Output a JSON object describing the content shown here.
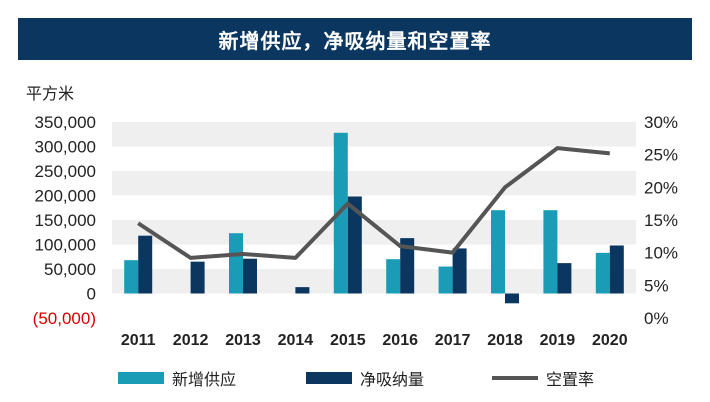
{
  "title": "新增供应，净吸纳量和空置率",
  "unit_label": "平方米",
  "colors": {
    "supply": "#1a9cb7",
    "absorption": "#0b3660",
    "vacancy": "#555555",
    "title_bg": "#0b3660",
    "band": "#efefef"
  },
  "chart_data": {
    "type": "bar",
    "categories": [
      "2011",
      "2012",
      "2013",
      "2014",
      "2015",
      "2016",
      "2017",
      "2018",
      "2019",
      "2020"
    ],
    "series": [
      {
        "name": "新增供应",
        "type": "bar",
        "axis": "left",
        "values": [
          68000,
          0,
          123000,
          0,
          328000,
          70000,
          55000,
          170000,
          170000,
          83000
        ]
      },
      {
        "name": "净吸纳量",
        "type": "bar",
        "axis": "left",
        "values": [
          118000,
          65000,
          71000,
          13000,
          198000,
          113000,
          92000,
          -20000,
          62000,
          98000
        ]
      },
      {
        "name": "空置率",
        "type": "line",
        "axis": "right",
        "values": [
          14.5,
          9.2,
          9.8,
          9.2,
          17.5,
          11.0,
          10.0,
          20.0,
          26.0,
          25.2
        ]
      }
    ],
    "left_axis": {
      "ylim": [
        -50000,
        350000
      ],
      "ticks": [
        350000,
        300000,
        250000,
        200000,
        150000,
        100000,
        50000,
        0,
        -50000
      ],
      "tick_labels": [
        "350,000",
        "300,000",
        "250,000",
        "200,000",
        "150,000",
        "100,000",
        "50,000",
        "0",
        "(50,000)"
      ]
    },
    "right_axis": {
      "ylim": [
        0,
        30
      ],
      "ticks": [
        30,
        25,
        20,
        15,
        10,
        5,
        0
      ],
      "tick_labels": [
        "30%",
        "25%",
        "20%",
        "15%",
        "10%",
        "5%",
        "0%"
      ]
    },
    "legend": [
      "新增供应",
      "净吸纳量",
      "空置率"
    ],
    "legend_position": "bottom"
  }
}
